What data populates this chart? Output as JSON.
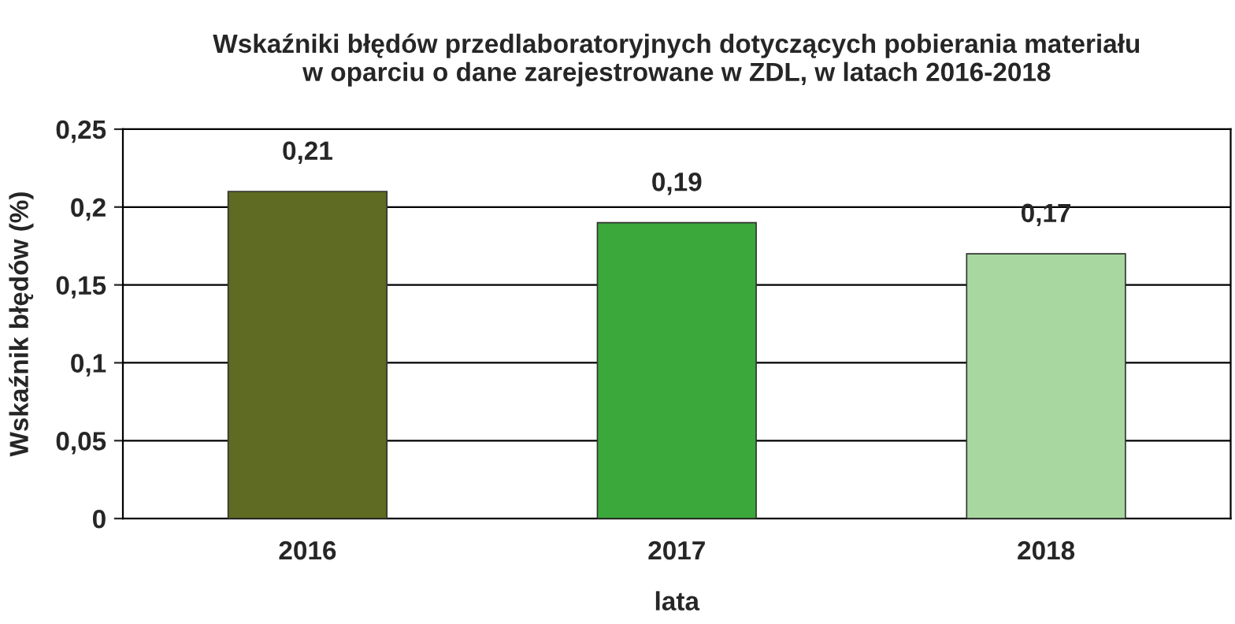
{
  "chart_data": {
    "type": "bar",
    "title": "Wskaźniki błędów przedlaboratoryjnych dotyczących pobierania materiału\nw oparciu o dane zarejestrowane w ZDL, w latach 2016-2018",
    "xlabel": "lata",
    "ylabel": "Wskaźnik błędów (%)",
    "categories": [
      "2016",
      "2017",
      "2018"
    ],
    "values": [
      0.21,
      0.19,
      0.17
    ],
    "colors": [
      "#5f6a22",
      "#3aa83a",
      "#a8d8a0"
    ],
    "value_labels": [
      "0,21",
      "0,19",
      "0,17"
    ],
    "ylim": [
      0,
      0.25
    ],
    "yticks": [
      {
        "value": 0,
        "label": "0"
      },
      {
        "value": 0.05,
        "label": "0,05"
      },
      {
        "value": 0.1,
        "label": "0,1"
      },
      {
        "value": 0.15,
        "label": "0,15"
      },
      {
        "value": 0.2,
        "label": "0,2"
      },
      {
        "value": 0.25,
        "label": "0,25"
      }
    ],
    "grid": "y",
    "legend": false
  }
}
